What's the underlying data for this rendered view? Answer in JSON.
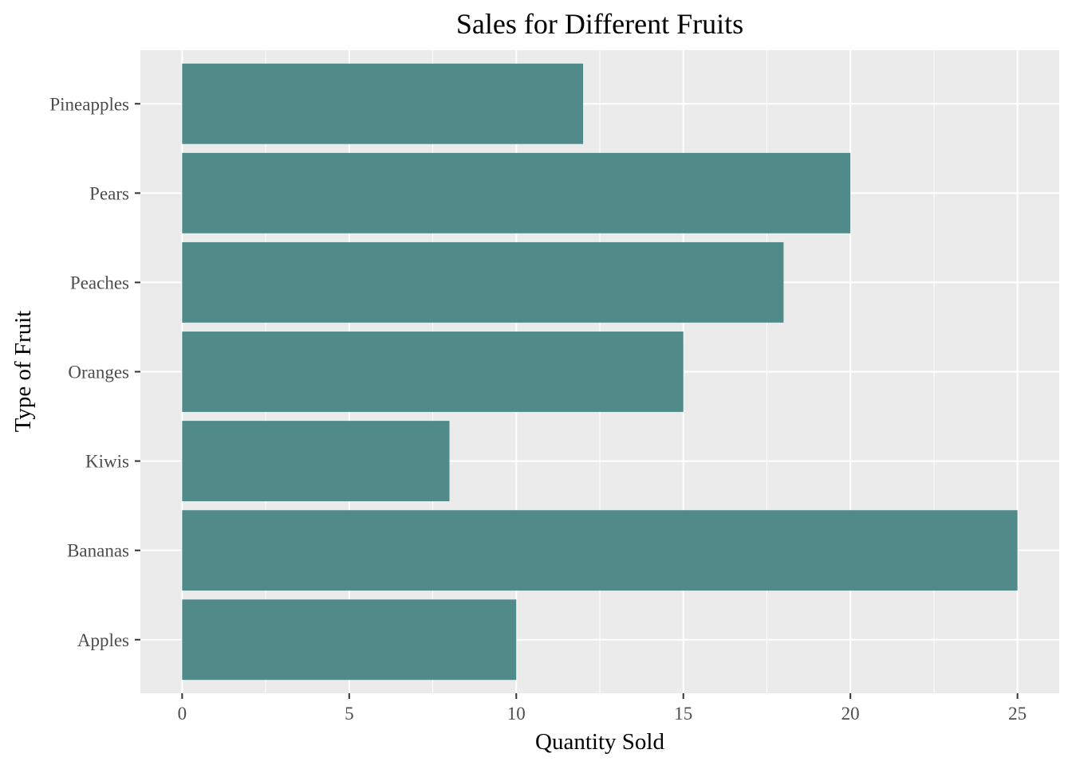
{
  "chart_data": {
    "type": "bar",
    "orientation": "horizontal",
    "title": "Sales for Different Fruits",
    "xlabel": "Quantity Sold",
    "ylabel": "Type of Fruit",
    "categories": [
      "Apples",
      "Bananas",
      "Kiwis",
      "Oranges",
      "Peaches",
      "Pears",
      "Pineapples"
    ],
    "values": [
      10,
      25,
      8,
      15,
      18,
      20,
      12
    ],
    "xlim": [
      -1.25,
      26.25
    ],
    "x_ticks": [
      "0",
      "5",
      "10",
      "15",
      "20",
      "25"
    ],
    "grid": true,
    "legend": "none",
    "colors": {
      "bar": "#508B8A",
      "panel": "#EBEBEB",
      "grid": "#FFFFFF",
      "tick_text": "#4D4D4D",
      "tick_mark": "#333333"
    }
  }
}
